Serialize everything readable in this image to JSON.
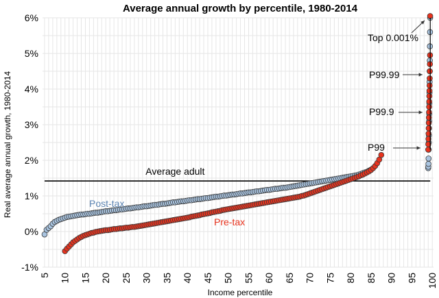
{
  "chart_data": {
    "type": "scatter",
    "title": "Average annual growth by percentile, 1980-2014",
    "xlabel": "Income percentile",
    "ylabel": "Real average annual growth, 1980-2014",
    "xlim": [
      4.5,
      100.3
    ],
    "ylim": [
      -1,
      6
    ],
    "x_ticks": [
      "5",
      "10",
      "15",
      "20",
      "25",
      "30",
      "35",
      "40",
      "45",
      "50",
      "55",
      "60",
      "65",
      "70",
      "75",
      "80",
      "85",
      "90",
      "95",
      "100"
    ],
    "y_ticks": [
      "-1%",
      "0%",
      "1%",
      "2%",
      "3%",
      "4%",
      "5%",
      "6%"
    ],
    "grid": true,
    "colors": {
      "post_tax": "#a9c4e0",
      "pre_tax": "#e8331e",
      "marker_edge": "#3a3a3a",
      "average_line": "#000000"
    },
    "average_line": {
      "label": "Average adult",
      "value": 1.42
    },
    "series_labels": {
      "post_tax": "Post-tax",
      "pre_tax": "Pre-tax"
    },
    "annotations": [
      {
        "label": "Top 0.001%",
        "y": 6.0
      },
      {
        "label": "P99.99",
        "y": 4.55
      },
      {
        "label": "P99.9",
        "y": 3.3
      },
      {
        "label": "P99",
        "y": 2.35
      }
    ],
    "series": [
      {
        "key": "post_tax",
        "x_start": 5,
        "x_step": 0.5,
        "values": [
          -0.08,
          0.05,
          0.1,
          0.15,
          0.22,
          0.27,
          0.3,
          0.33,
          0.35,
          0.37,
          0.39,
          0.41,
          0.42,
          0.43,
          0.44,
          0.45,
          0.46,
          0.47,
          0.48,
          0.48,
          0.49,
          0.5,
          0.5,
          0.51,
          0.52,
          0.53,
          0.53,
          0.54,
          0.55,
          0.56,
          0.57,
          0.57,
          0.58,
          0.59,
          0.6,
          0.6,
          0.61,
          0.62,
          0.62,
          0.63,
          0.64,
          0.65,
          0.65,
          0.66,
          0.67,
          0.68,
          0.68,
          0.69,
          0.7,
          0.71,
          0.71,
          0.72,
          0.73,
          0.74,
          0.75,
          0.75,
          0.76,
          0.77,
          0.78,
          0.78,
          0.79,
          0.8,
          0.81,
          0.82,
          0.82,
          0.83,
          0.84,
          0.85,
          0.85,
          0.86,
          0.87,
          0.88,
          0.88,
          0.89,
          0.9,
          0.91,
          0.91,
          0.92,
          0.93,
          0.94,
          0.94,
          0.95,
          0.96,
          0.97,
          0.98,
          0.98,
          0.99,
          1.0,
          1.01,
          1.01,
          1.02,
          1.03,
          1.04,
          1.04,
          1.05,
          1.06,
          1.07,
          1.07,
          1.08,
          1.09,
          1.1,
          1.1,
          1.11,
          1.12,
          1.13,
          1.13,
          1.14,
          1.15,
          1.16,
          1.17,
          1.17,
          1.18,
          1.19,
          1.2,
          1.2,
          1.21,
          1.22,
          1.23,
          1.23,
          1.24,
          1.25,
          1.26,
          1.27,
          1.28,
          1.29,
          1.3,
          1.31,
          1.32,
          1.33,
          1.34,
          1.35,
          1.36,
          1.37,
          1.38,
          1.39,
          1.4,
          1.41,
          1.42,
          1.43,
          1.44,
          1.45,
          1.46,
          1.47,
          1.48,
          1.49,
          1.5,
          1.51,
          1.52,
          1.53,
          1.54,
          1.55,
          1.56,
          1.57,
          1.58,
          1.6,
          1.62,
          1.64,
          1.66,
          1.68,
          1.71,
          1.74,
          1.78,
          1.82,
          1.9,
          2.05,
          2.3,
          2.5,
          2.7,
          2.9,
          3.1,
          3.3,
          3.6,
          3.9,
          4.2,
          4.5,
          4.8,
          5.2,
          5.6,
          6.0
        ]
      },
      {
        "key": "pre_tax",
        "x_start": 10,
        "x_step": 0.5,
        "values": [
          -0.55,
          -0.48,
          -0.42,
          -0.36,
          -0.3,
          -0.26,
          -0.22,
          -0.18,
          -0.15,
          -0.12,
          -0.1,
          -0.08,
          -0.06,
          -0.04,
          -0.03,
          -0.01,
          0.0,
          0.01,
          0.02,
          0.03,
          0.04,
          0.04,
          0.05,
          0.06,
          0.07,
          0.07,
          0.08,
          0.09,
          0.09,
          0.1,
          0.11,
          0.11,
          0.12,
          0.13,
          0.13,
          0.14,
          0.15,
          0.16,
          0.17,
          0.18,
          0.19,
          0.2,
          0.21,
          0.22,
          0.23,
          0.24,
          0.25,
          0.26,
          0.27,
          0.28,
          0.29,
          0.3,
          0.31,
          0.32,
          0.33,
          0.34,
          0.35,
          0.36,
          0.37,
          0.38,
          0.39,
          0.4,
          0.42,
          0.43,
          0.44,
          0.45,
          0.46,
          0.48,
          0.49,
          0.5,
          0.51,
          0.52,
          0.54,
          0.55,
          0.56,
          0.57,
          0.58,
          0.6,
          0.61,
          0.62,
          0.63,
          0.64,
          0.65,
          0.66,
          0.67,
          0.68,
          0.69,
          0.7,
          0.71,
          0.72,
          0.73,
          0.74,
          0.75,
          0.76,
          0.77,
          0.78,
          0.79,
          0.8,
          0.81,
          0.82,
          0.83,
          0.84,
          0.85,
          0.86,
          0.87,
          0.88,
          0.89,
          0.9,
          0.91,
          0.92,
          0.93,
          0.94,
          0.95,
          0.96,
          0.97,
          0.98,
          1.0,
          1.01,
          1.03,
          1.05,
          1.07,
          1.09,
          1.11,
          1.13,
          1.15,
          1.17,
          1.19,
          1.21,
          1.23,
          1.25,
          1.27,
          1.29,
          1.31,
          1.33,
          1.35,
          1.37,
          1.39,
          1.41,
          1.43,
          1.45,
          1.47,
          1.49,
          1.51,
          1.53,
          1.55,
          1.58,
          1.6,
          1.63,
          1.66,
          1.69,
          1.73,
          1.78,
          1.84,
          1.92,
          2.02,
          2.15,
          2.3,
          2.45,
          2.6,
          2.75,
          2.9,
          3.05,
          3.2,
          3.35,
          3.5,
          3.65,
          3.8,
          3.95,
          4.1,
          4.3,
          4.5,
          4.7,
          4.95,
          6.05
        ]
      }
    ]
  }
}
